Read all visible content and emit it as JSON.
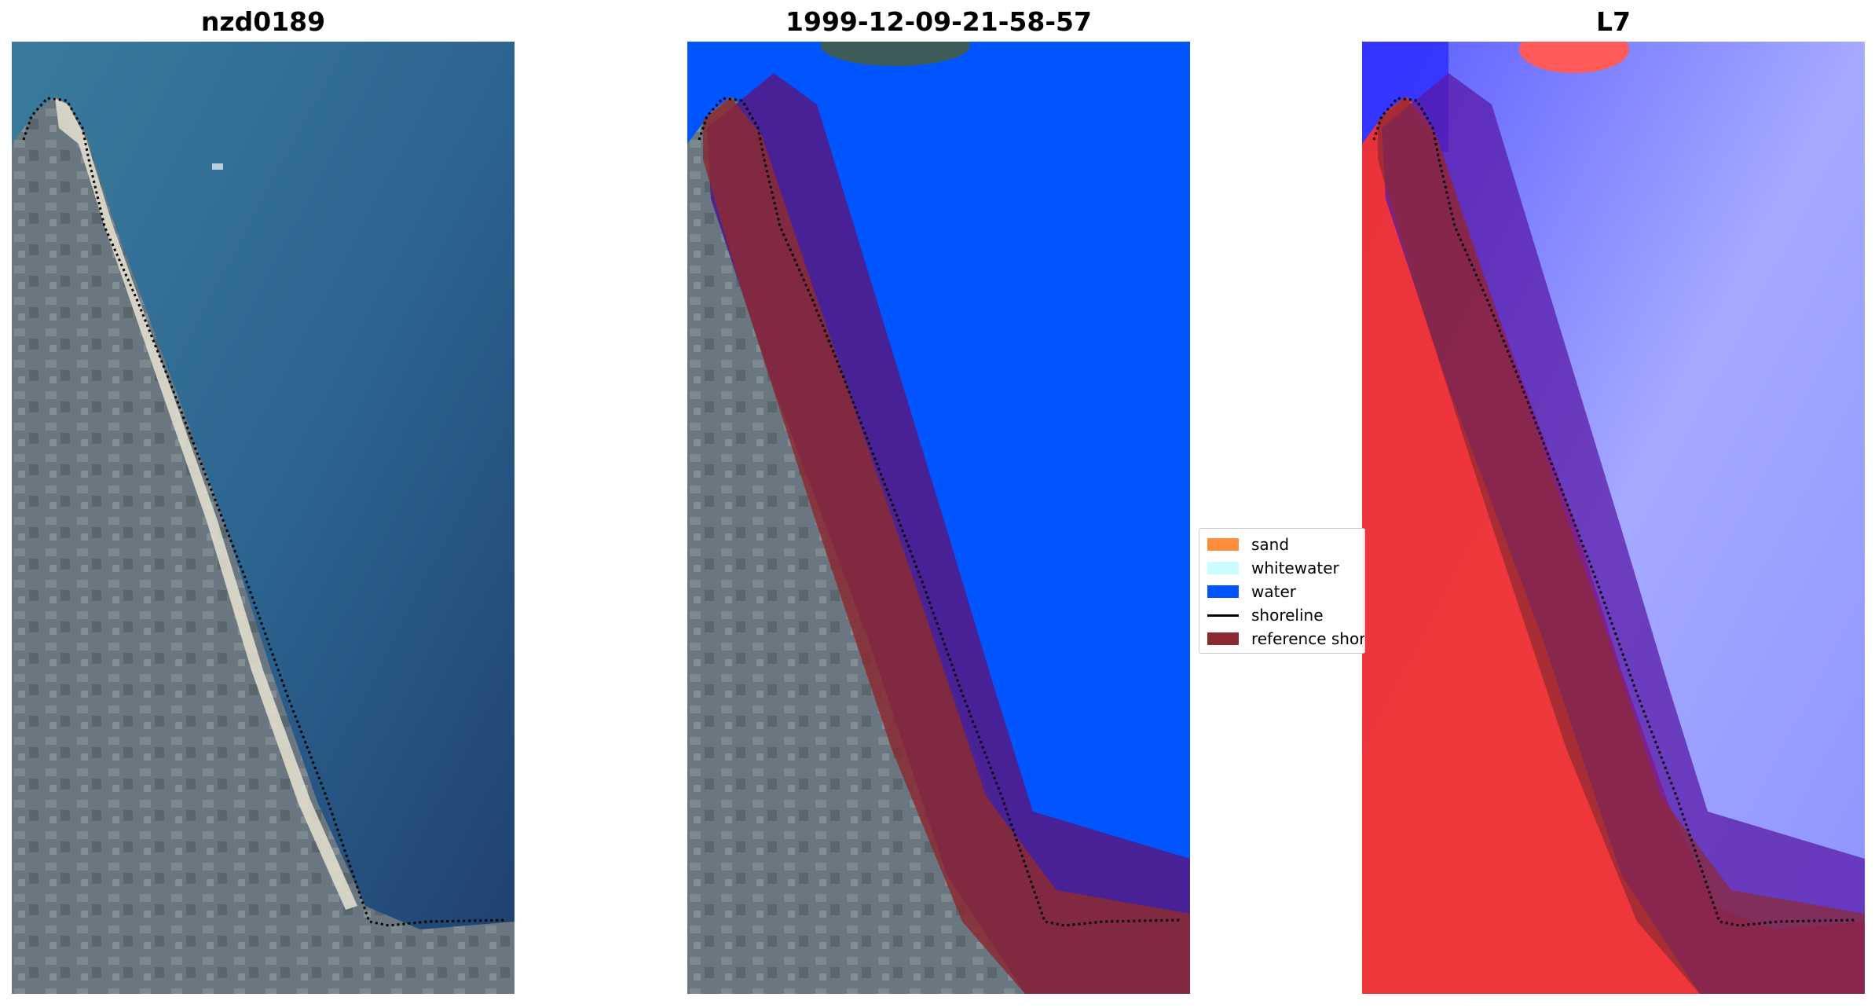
{
  "panels": [
    {
      "title": "nzd0189"
    },
    {
      "title": "1999-12-09-21-58-57"
    },
    {
      "title": "L7"
    }
  ],
  "legend": {
    "items": [
      {
        "label": "sand",
        "color": "#ff8c3a",
        "kind": "patch"
      },
      {
        "label": "whitewater",
        "color": "#c9fbff",
        "kind": "patch"
      },
      {
        "label": "water",
        "color": "#0055ff",
        "kind": "patch"
      },
      {
        "label": "shoreline",
        "color": "#000000",
        "kind": "line"
      },
      {
        "label": "reference shoreline",
        "color": "#8b2a32",
        "kind": "patch"
      }
    ]
  },
  "colors": {
    "land": "#6f7a82",
    "ocean": "#2b5f8e",
    "beach": "#e8e2d2",
    "classified_water": "#0055ff",
    "buffer": "#4b1f8f",
    "reference_shoreline": "#8b2a32",
    "index_land": "#f23030",
    "index_water": "#9aa0ff"
  }
}
